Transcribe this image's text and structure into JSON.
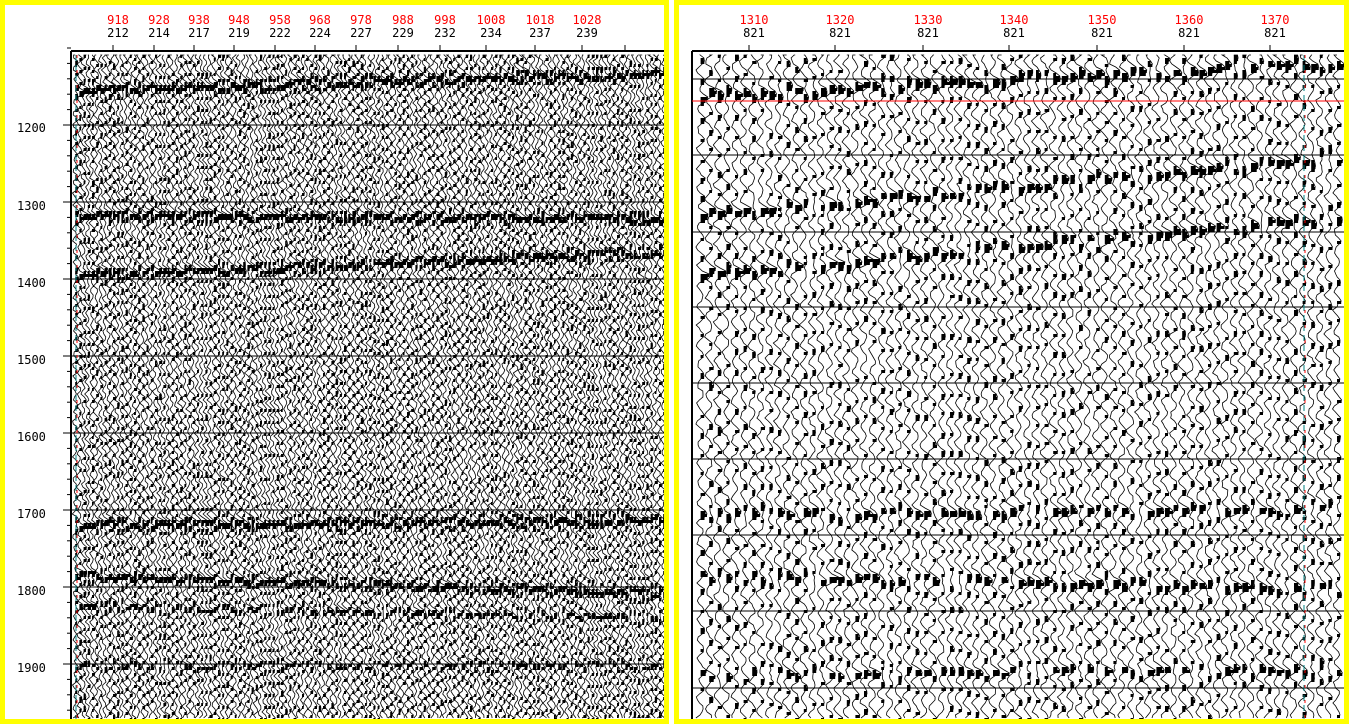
{
  "left_panel": {
    "cdp_labels": [
      "918",
      "928",
      "938",
      "948",
      "958",
      "968",
      "978",
      "988",
      "998",
      "1008",
      "1018",
      "1028"
    ],
    "inline_labels": [
      "212",
      "214",
      "217",
      "219",
      "222",
      "224",
      "227",
      "229",
      "232",
      "234",
      "237",
      "239"
    ],
    "time_labels": [
      "1200",
      "1300",
      "1400",
      "1500",
      "1600",
      "1700",
      "1800",
      "1900"
    ]
  },
  "right_panel": {
    "cdp_labels": [
      "1310",
      "1320",
      "1330",
      "1340",
      "1350",
      "1360",
      "1370"
    ],
    "inline_labels": [
      "821",
      "821",
      "821",
      "821",
      "821",
      "821",
      "821"
    ]
  },
  "colors": {
    "frame": "#ffff00",
    "header_label": "#ff0000",
    "wiggle": "#000000",
    "pick_line": "#ff0000",
    "marker_line": "#008080"
  }
}
